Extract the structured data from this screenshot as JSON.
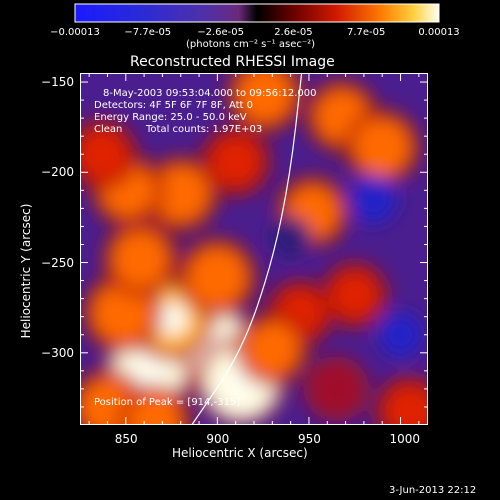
{
  "chart_data": {
    "type": "heatmap",
    "title": "Reconstructed RHESSI Image",
    "xlabel": "Heliocentric X (arcsec)",
    "ylabel": "Heliocentric Y (arcsec)",
    "xlim": [
      825,
      1015
    ],
    "ylim": [
      -340,
      -145
    ],
    "x_ticks": [
      "850",
      "900",
      "950",
      "1000"
    ],
    "x_tick_values": [
      850,
      900,
      950,
      1000
    ],
    "y_ticks": [
      "-150",
      "-200",
      "-250",
      "-300"
    ],
    "y_tick_values": [
      -150,
      -200,
      -250,
      -300
    ],
    "colorbar": {
      "ticks": [
        "-0.00013",
        "-7.7e-05",
        "-2.6e-05",
        "2.6e-05",
        "7.7e-05",
        "0.00013"
      ],
      "unit_label": "(photons cm⁻² s⁻¹ asec⁻²)",
      "range": [
        -0.00013,
        0.00013
      ]
    },
    "annotations": {
      "time_range": "8-May-2003 09:53:04.000 to 09:56:12.000",
      "detectors": "Detectors: 4F 5F 6F 7F 8F, Att 0",
      "energy_range": "Energy Range: 25.0 - 50.0 keV",
      "clean_label": "Clean",
      "total_counts": "Total counts: 1.97E+03",
      "peak": "Position of Peak = [914,-315]"
    },
    "peak_position": [
      914,
      -315
    ],
    "blobs": [
      {
        "x": 895,
        "y": -296,
        "value": 0.00013
      },
      {
        "x": 862,
        "y": -311,
        "value": 0.00012
      },
      {
        "x": 913,
        "y": -316,
        "value": 0.00012
      },
      {
        "x": 875,
        "y": -281,
        "value": 0.0001
      },
      {
        "x": 848,
        "y": -278,
        "value": 8e-05
      },
      {
        "x": 858,
        "y": -248,
        "value": 7e-05
      },
      {
        "x": 900,
        "y": -258,
        "value": 8e-05
      },
      {
        "x": 880,
        "y": -212,
        "value": 7e-05
      },
      {
        "x": 851,
        "y": -210,
        "value": 6e-05
      },
      {
        "x": 837,
        "y": -190,
        "value": 5e-05
      },
      {
        "x": 910,
        "y": -194,
        "value": 5e-05
      },
      {
        "x": 926,
        "y": -157,
        "value": 7e-05
      },
      {
        "x": 945,
        "y": -278,
        "value": 4e-05
      },
      {
        "x": 968,
        "y": -169,
        "value": 6e-05
      },
      {
        "x": 990,
        "y": -186,
        "value": 7e-05
      },
      {
        "x": 952,
        "y": -222,
        "value": 6e-05
      },
      {
        "x": 975,
        "y": -268,
        "value": 4e-05
      },
      {
        "x": 930,
        "y": -298,
        "value": 6e-05
      },
      {
        "x": 840,
        "y": -330,
        "value": 7e-05
      },
      {
        "x": 1005,
        "y": -332,
        "value": 5e-05
      },
      {
        "x": 965,
        "y": -320,
        "value": 3e-05
      },
      {
        "x": 866,
        "y": -338,
        "value": 6e-05
      },
      {
        "x": 940,
        "y": -236,
        "value": -2e-05
      },
      {
        "x": 985,
        "y": -215,
        "value": -4e-05
      },
      {
        "x": 1000,
        "y": -290,
        "value": -3e-05
      }
    ],
    "limb_curve": [
      [
        886,
        -340
      ],
      [
        913,
        -300
      ],
      [
        930,
        -250
      ],
      [
        940,
        -200
      ],
      [
        946,
        -145
      ]
    ]
  },
  "footer": {
    "timestamp": "3-Jun-2013 22:12"
  }
}
